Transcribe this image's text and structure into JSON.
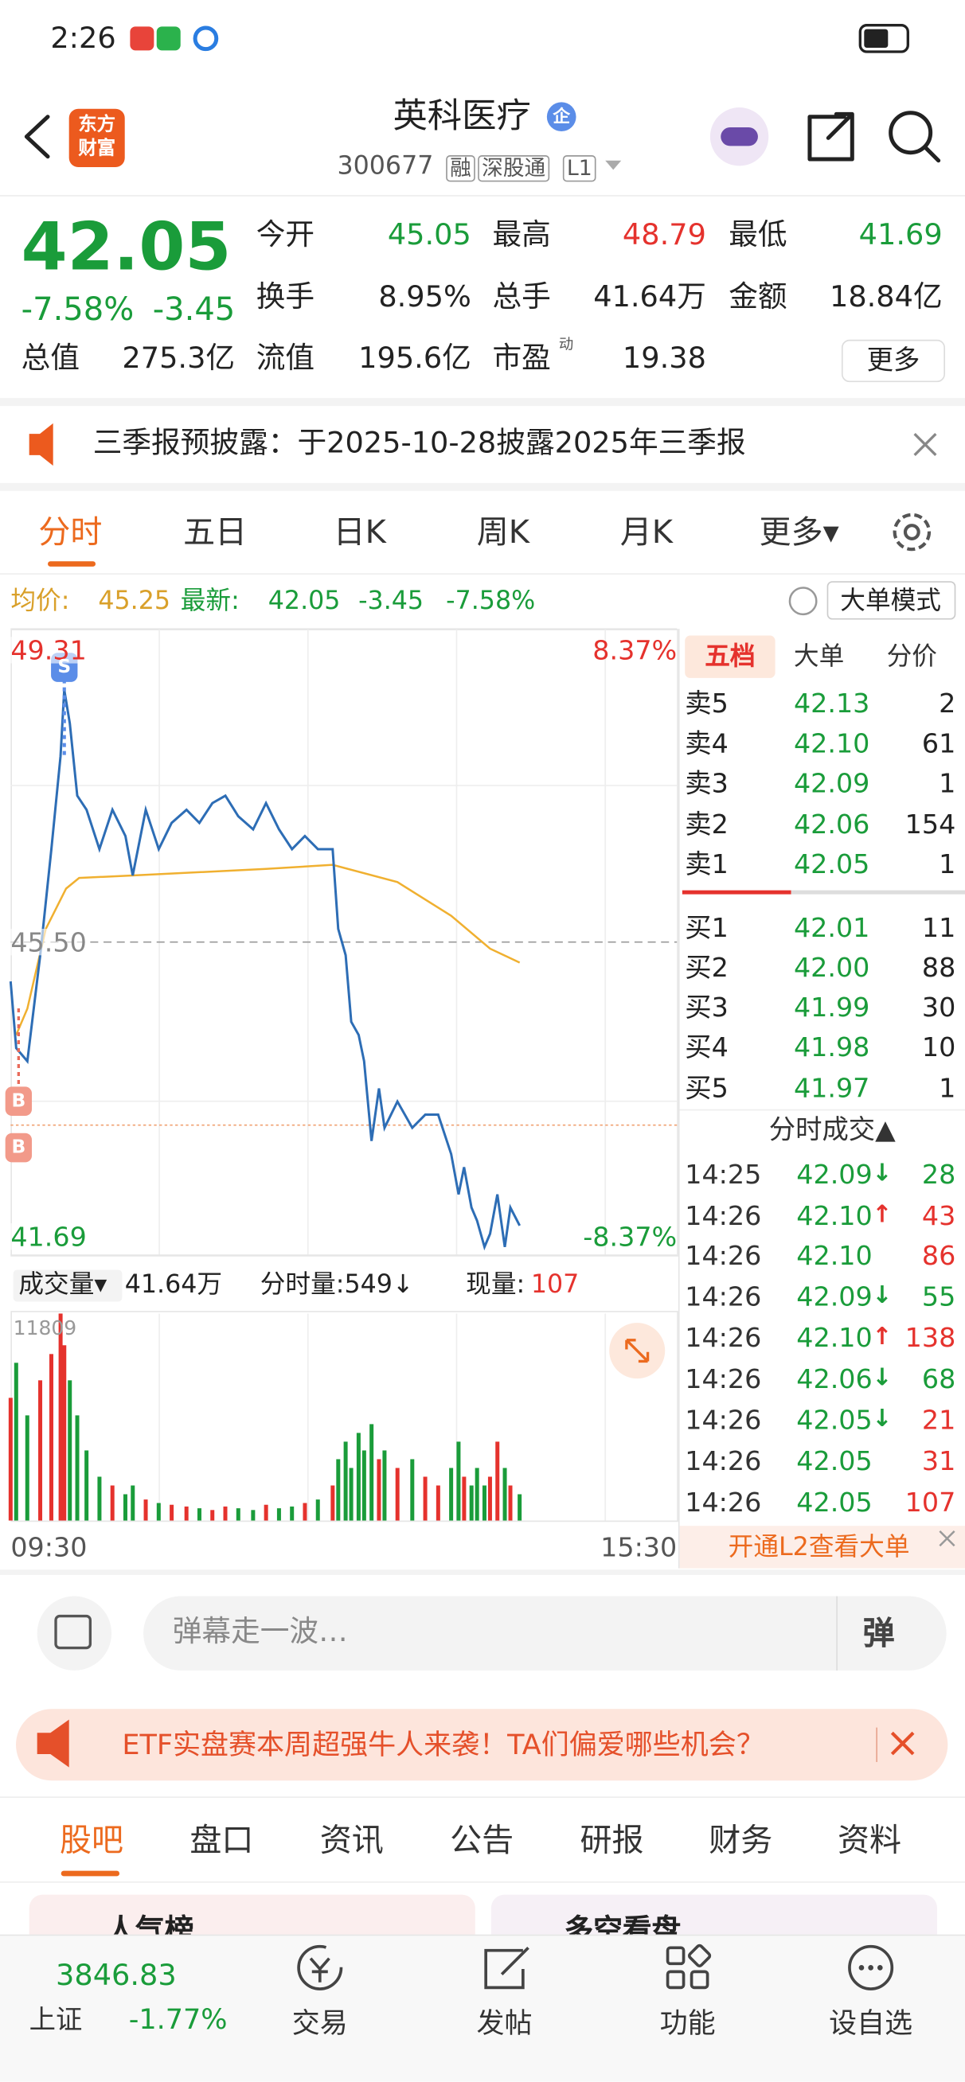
{
  "status_bar": {
    "time": "2:26"
  },
  "header": {
    "logo": [
      "东方",
      "财富"
    ],
    "title": "英科医疗",
    "badge": "企",
    "code": "300677",
    "tags": [
      "融",
      "深股通",
      "L1"
    ]
  },
  "quote": {
    "price": "42.05",
    "change_pct": "-7.58%",
    "change": "-3.45",
    "fields": [
      {
        "label": "今开",
        "value": "45.05",
        "color": "#1a9c3a"
      },
      {
        "label": "最高",
        "value": "48.79",
        "color": "#e5322d"
      },
      {
        "label": "最低",
        "value": "41.69",
        "color": "#1a9c3a"
      },
      {
        "label": "换手",
        "value": "8.95%",
        "color": "#222222"
      },
      {
        "label": "总手",
        "value": "41.64万",
        "color": "#222222"
      },
      {
        "label": "金额",
        "value": "18.84亿",
        "color": "#222222"
      },
      {
        "label": "总值",
        "value": "275.3亿",
        "color": "#222222"
      },
      {
        "label": "流值",
        "value": "195.6亿",
        "color": "#222222"
      },
      {
        "label": "市盈",
        "superscript": "动",
        "value": "19.38",
        "color": "#222222"
      }
    ],
    "more": "更多"
  },
  "notice": {
    "text": "三季报预披露：于2025-10-28披露2025年三季报"
  },
  "tabs": {
    "items": [
      "分时",
      "五日",
      "日K",
      "周K",
      "月K",
      "更多▾"
    ],
    "active": 0
  },
  "info": {
    "avg_label": "均价:",
    "avg": "45.25",
    "last_label": "最新:",
    "last": "42.05",
    "change": "-3.45",
    "change_pct": "-7.58%",
    "big_order_button": "大单模式"
  },
  "intraday": {
    "type": "line",
    "xlim": [
      0,
      360
    ],
    "xticks": [
      {
        "value": 0,
        "label": "09:30"
      },
      {
        "value": 360,
        "label": "15:30"
      }
    ],
    "ylim": [
      41.69,
      49.31
    ],
    "yticks": [
      49.31,
      {
        "value": 45.5,
        "label": "45.50"
      },
      41.69
    ],
    "pct_labels": [
      "8.37%",
      "-8.37%"
    ],
    "price_color": "#2d6db5",
    "avg_color": "#f0b030",
    "x": [
      0,
      3,
      9,
      16,
      22,
      27,
      29,
      32,
      36,
      41,
      48,
      55,
      62,
      66,
      73,
      80,
      87,
      95,
      102,
      109,
      116,
      123,
      131,
      138,
      145,
      152,
      159,
      166,
      174,
      177,
      181,
      184,
      188,
      191,
      195,
      199,
      202,
      209,
      217,
      224,
      231,
      238,
      242,
      245,
      249,
      252,
      256,
      259,
      263,
      267,
      270,
      275
    ],
    "price": [
      45.02,
      44.21,
      44.05,
      45.34,
      46.63,
      47.76,
      48.57,
      48.16,
      47.28,
      47.11,
      46.63,
      47.11,
      46.79,
      46.31,
      47.11,
      46.63,
      46.95,
      47.11,
      46.95,
      47.19,
      47.28,
      47.03,
      46.87,
      47.19,
      46.87,
      46.63,
      46.79,
      46.63,
      46.63,
      45.66,
      45.34,
      44.53,
      44.37,
      44.05,
      43.08,
      43.72,
      43.24,
      43.56,
      43.24,
      43.4,
      43.4,
      42.92,
      42.43,
      42.76,
      42.27,
      42.11,
      41.79,
      41.95,
      42.43,
      41.79,
      42.27,
      42.05
    ],
    "avg_x": [
      3,
      9,
      19,
      30,
      37,
      66,
      138,
      174,
      209,
      238,
      259,
      275
    ],
    "avg": [
      44.37,
      44.69,
      45.66,
      46.15,
      46.28,
      46.31,
      46.39,
      46.44,
      46.23,
      45.82,
      45.42,
      45.25
    ],
    "volume": [
      7000,
      9000,
      6000,
      8000,
      9500,
      11809,
      10000,
      8000,
      6000,
      4000,
      2500,
      2000,
      1500,
      2000,
      1200,
      1000,
      900,
      800,
      700,
      600,
      800,
      700,
      600,
      900,
      700,
      800,
      1000,
      1200,
      2000,
      3500,
      4500,
      3000,
      5000,
      4000,
      5500,
      3500,
      4000,
      3000,
      3500,
      2500,
      2000,
      3000,
      4500,
      2500,
      2000,
      3000,
      2000,
      2500,
      4500,
      3000,
      2000,
      1500
    ],
    "volume_ylim": [
      0,
      11809
    ],
    "volume_yticks": [
      11809
    ]
  },
  "chart_markers": [
    "S",
    "B",
    "B"
  ],
  "volume_bar": {
    "menu": "成交量▾",
    "total": "41.64万",
    "minute_label": "分时量:549↓",
    "current_label": "现量:",
    "current": "107"
  },
  "order_book": {
    "tabs": [
      "五档",
      "大单",
      "分价"
    ],
    "asks": [
      [
        "卖5",
        "42.13",
        "2"
      ],
      [
        "卖4",
        "42.10",
        "61"
      ],
      [
        "卖3",
        "42.09",
        "1"
      ],
      [
        "卖2",
        "42.06",
        "154"
      ],
      [
        "卖1",
        "42.05",
        "1"
      ]
    ],
    "bids": [
      [
        "买1",
        "42.01",
        "11"
      ],
      [
        "买2",
        "42.00",
        "88"
      ],
      [
        "买3",
        "41.99",
        "30"
      ],
      [
        "买4",
        "41.98",
        "10"
      ],
      [
        "买5",
        "41.97",
        "1"
      ]
    ],
    "trades_title": "分时成交▲",
    "trades": [
      {
        "time": "14:25",
        "price": "42.09",
        "arrow": "↓",
        "volume": "28",
        "color": "#1a9c3a"
      },
      {
        "time": "14:26",
        "price": "42.10",
        "arrow": "↑",
        "volume": "43",
        "color": "#e5322d"
      },
      {
        "time": "14:26",
        "price": "42.10",
        "volume": "86",
        "color": "#e5322d"
      },
      {
        "time": "14:26",
        "price": "42.09",
        "arrow": "↓",
        "volume": "55",
        "color": "#1a9c3a"
      },
      {
        "time": "14:26",
        "price": "42.10",
        "arrow": "↑",
        "volume": "138",
        "color": "#e5322d"
      },
      {
        "time": "14:26",
        "price": "42.06",
        "arrow": "↓",
        "volume": "68",
        "color": "#1a9c3a"
      },
      {
        "time": "14:26",
        "price": "42.05",
        "arrow": "↓",
        "volume": "21",
        "color": "#e5322d"
      },
      {
        "time": "14:26",
        "price": "42.05",
        "volume": "31",
        "color": "#e5322d"
      },
      {
        "time": "14:26",
        "price": "42.05",
        "volume": "107",
        "color": "#e5322d"
      }
    ],
    "l2": "开通L2查看大单"
  },
  "comment": {
    "placeholder": "弹幕走一波…",
    "button": "弹"
  },
  "ad": {
    "text": "ETF实盘赛本周超强牛人来袭！TA们偏爱哪些机会？"
  },
  "bottom_tabs": {
    "items": [
      "股吧",
      "盘口",
      "资讯",
      "公告",
      "研报",
      "财务",
      "资料"
    ],
    "active": 0
  },
  "cards": [
    "人气榜",
    "多空看盘"
  ],
  "nav": {
    "index_value": "3846.83",
    "index_name": "上证",
    "index_change": "-1.77%",
    "items": [
      "交易",
      "发帖",
      "功能",
      "设自选"
    ]
  }
}
